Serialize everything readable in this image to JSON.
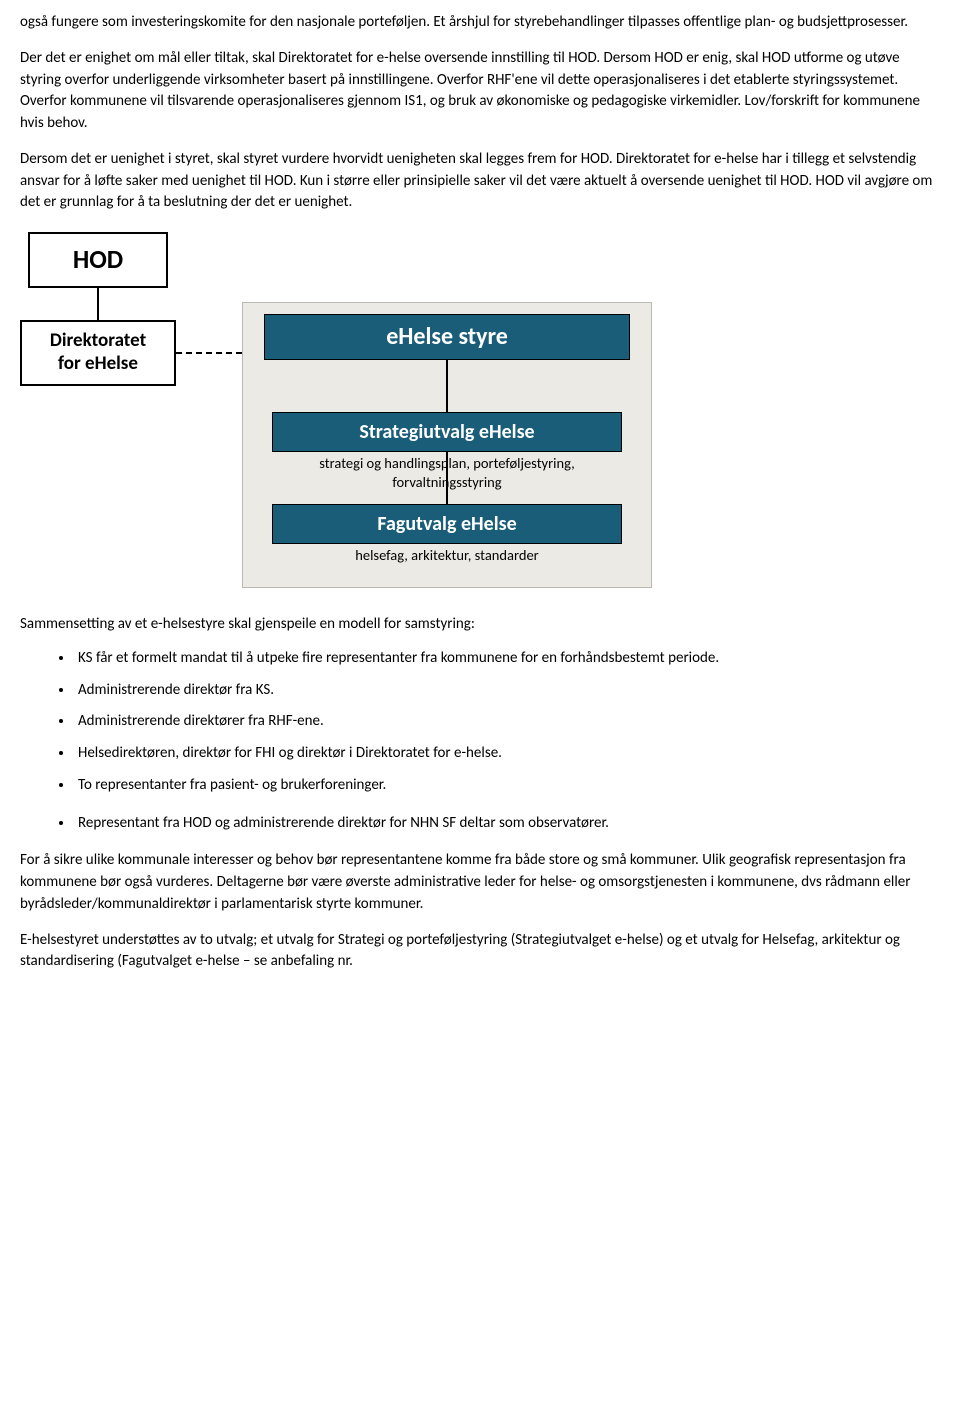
{
  "paragraphs": {
    "p1": "også fungere som investeringskomite for den nasjonale porteføljen. Et årshjul for styrebehandlinger tilpasses offentlige plan- og budsjettprosesser.",
    "p2": "Der det er enighet om mål eller tiltak, skal Direktoratet for e-helse oversende innstilling til HOD. Dersom HOD er enig, skal HOD utforme og utøve styring overfor underliggende virksomheter basert på innstillingene. Overfor RHF'ene vil dette operasjonaliseres i det etablerte styringssystemet. Overfor kommunene vil tilsvarende operasjonaliseres gjennom IS1, og bruk av økonomiske og pedagogiske virkemidler. Lov/forskrift for kommunene hvis behov.",
    "p3": "Dersom det er uenighet i styret, skal styret vurdere hvorvidt uenigheten skal legges frem for HOD. Direktoratet for e-helse har i tillegg et selvstendig ansvar for å løfte saker med uenighet til HOD. Kun i større eller prinsipielle saker vil det være aktuelt å oversende uenighet til HOD. HOD vil avgjøre om det er grunnlag for å ta beslutning der det er uenighet.",
    "intro_list": "Sammensetting av et e-helsestyre skal gjenspeile en modell for samstyring:",
    "p4": "For å sikre ulike kommunale interesser og behov bør representantene komme fra både store og små kommuner. Ulik geografisk representasjon fra kommunene bør også vurderes. Deltagerne bør være øverste administrative leder for helse- og omsorgstjenesten i kommunene, dvs rådmann eller byrådsleder/kommunaldirektør i parlamentarisk styrte kommuner.",
    "p5": "E-helsestyret understøttes av to utvalg; et utvalg for Strategi og porteføljestyring (Strategiutvalget e-helse) og et utvalg for Helsefag, arkitektur og standardisering (Fagutvalget e-helse – se anbefaling nr."
  },
  "bullets": {
    "b1": "KS får et formelt mandat til å utpeke fire representanter fra kommunene for en forhåndsbestemt periode.",
    "b2": "Administrerende direktør fra KS.",
    "b3": "Administrerende direktører fra RHF-ene.",
    "b4": "Helsedirektøren, direktør for FHI og direktør i Direktoratet for e-helse.",
    "b5": "To representanter fra pasient- og brukerforeninger.",
    "b6": "Representant fra HOD og administrerende direktør for NHN SF deltar som observatører."
  },
  "diagram": {
    "hod": "HOD",
    "directorate_l1": "Direktoratet",
    "directorate_l2": "for eHelse",
    "styre": "eHelse styre",
    "strategi": "Strategiutvalg eHelse",
    "strategi_sub": "strategi og handlingsplan, porteføljestyring, forvaltningsstyring",
    "fag": "Fagutvalg eHelse",
    "fag_sub": "helsefag, arkitektur, standarder",
    "colors": {
      "bar_bg": "#1a5d78",
      "panel_bg": "#ebeae4",
      "panel_border": "#bab9b1"
    }
  }
}
